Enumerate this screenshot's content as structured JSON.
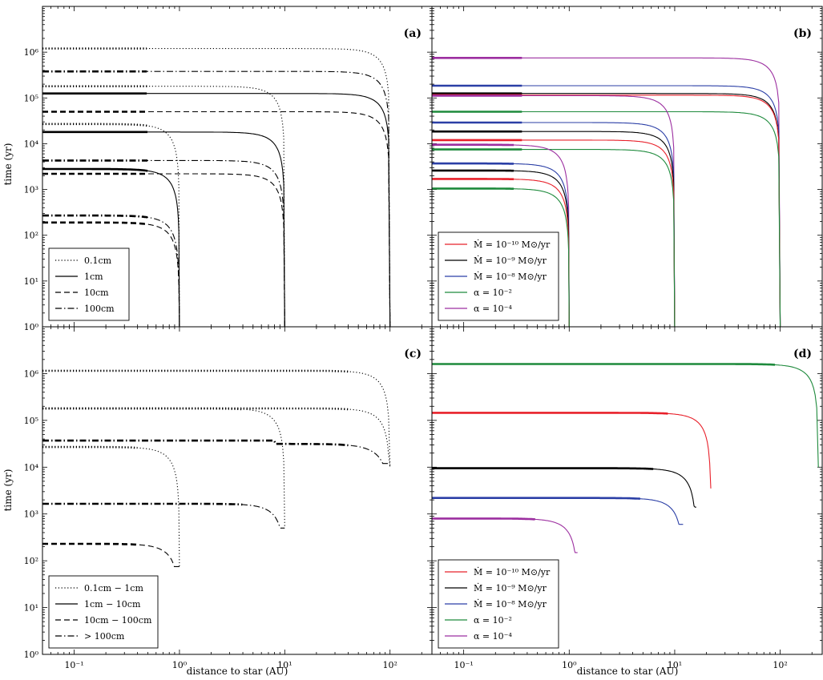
{
  "figure": {
    "xlabel": "distance to star (AU)",
    "ylabel": "time (yr)",
    "xlim": [
      0.05,
      250
    ],
    "ylim": [
      1,
      10000000
    ],
    "xscale": "log",
    "yscale": "log",
    "xticks": [
      "10⁻¹",
      "10⁰",
      "10¹",
      "10²"
    ],
    "yticks": [
      "10⁰",
      "10¹",
      "10²",
      "10³",
      "10⁴",
      "10⁵",
      "10⁶"
    ],
    "panel_labels": [
      "(a)",
      "(b)",
      "(c)",
      "(d)"
    ]
  },
  "colors": {
    "red": "#e8202a",
    "black": "#000000",
    "blue": "#2b3fa6",
    "green": "#1e8a3c",
    "magenta": "#9c2fa0"
  },
  "chart_data": [
    {
      "panel": "(a)",
      "type": "line",
      "legend_loc": "lower-left",
      "legend": [
        {
          "label": "0.1cm",
          "style": "dotted"
        },
        {
          "label": "1cm",
          "style": "solid"
        },
        {
          "label": "10cm",
          "style": "dashed"
        },
        {
          "label": "100cm",
          "style": "dashdot"
        }
      ],
      "series": [
        {
          "r0": 100,
          "t0": 1200000,
          "style": "dotted"
        },
        {
          "r0": 100,
          "t0": 125000,
          "style": "solid"
        },
        {
          "r0": 100,
          "t0": 50000,
          "style": "dashed"
        },
        {
          "r0": 100,
          "t0": 380000,
          "style": "dashdot"
        },
        {
          "r0": 10,
          "t0": 180000,
          "style": "dotted"
        },
        {
          "r0": 10,
          "t0": 18000,
          "style": "solid"
        },
        {
          "r0": 10,
          "t0": 2200,
          "style": "dashed"
        },
        {
          "r0": 10,
          "t0": 4300,
          "style": "dashdot"
        },
        {
          "r0": 1,
          "t0": 27000,
          "style": "dotted"
        },
        {
          "r0": 1,
          "t0": 2800,
          "style": "solid"
        },
        {
          "r0": 1,
          "t0": 190,
          "style": "dashed"
        },
        {
          "r0": 1,
          "t0": 270,
          "style": "dashdot"
        }
      ]
    },
    {
      "panel": "(b)",
      "type": "line",
      "legend_loc": "lower-left",
      "legend": [
        {
          "label": "Ṁ = 10⁻¹⁰ M⊙/yr",
          "color": "red"
        },
        {
          "label": "Ṁ = 10⁻⁹ M⊙/yr",
          "color": "black"
        },
        {
          "label": "Ṁ = 10⁻⁸ M⊙/yr",
          "color": "blue"
        },
        {
          "label": "α = 10⁻²",
          "color": "green"
        },
        {
          "label": "α = 10⁻⁴",
          "color": "magenta"
        }
      ],
      "series": [
        {
          "r0": 100,
          "t0": 750000,
          "color": "magenta"
        },
        {
          "r0": 100,
          "t0": 185000,
          "color": "blue"
        },
        {
          "r0": 100,
          "t0": 125000,
          "color": "black"
        },
        {
          "r0": 100,
          "t0": 115000,
          "color": "red"
        },
        {
          "r0": 100,
          "t0": 50000,
          "color": "green"
        },
        {
          "r0": 10,
          "t0": 112000,
          "color": "magenta"
        },
        {
          "r0": 10,
          "t0": 29000,
          "color": "blue"
        },
        {
          "r0": 10,
          "t0": 18500,
          "color": "black"
        },
        {
          "r0": 10,
          "t0": 12000,
          "color": "red"
        },
        {
          "r0": 10,
          "t0": 7500,
          "color": "green"
        },
        {
          "r0": 1,
          "t0": 9500,
          "color": "magenta"
        },
        {
          "r0": 1,
          "t0": 3700,
          "color": "blue"
        },
        {
          "r0": 1,
          "t0": 2600,
          "color": "black"
        },
        {
          "r0": 1,
          "t0": 1700,
          "color": "red"
        },
        {
          "r0": 1,
          "t0": 1050,
          "color": "green"
        }
      ]
    },
    {
      "panel": "(c)",
      "type": "line",
      "legend_loc": "lower-left",
      "legend": [
        {
          "label": "0.1cm − 1cm",
          "style": "dotted"
        },
        {
          "label": "1cm − 10cm",
          "style": "solid"
        },
        {
          "label": "10cm − 100cm",
          "style": "dashed"
        },
        {
          "label": "> 100cm",
          "style": "dashdot"
        }
      ],
      "series": [
        {
          "r0": 100,
          "t0": 1150000,
          "style": "dotted",
          "t_end": 10000
        },
        {
          "r0": 100,
          "t0": 180000,
          "style": "dotted",
          "t_end": 10000
        },
        {
          "r0": 100,
          "t0": 37000,
          "style": "dashdot",
          "t_end": 12000,
          "knee": 8
        },
        {
          "r0": 10,
          "t0": 180000,
          "style": "dotted",
          "t_end": 500
        },
        {
          "r0": 10,
          "t0": 1650,
          "style": "dashdot",
          "t_end": 500
        },
        {
          "r0": 1,
          "t0": 27000,
          "style": "dotted",
          "t_end": 75
        },
        {
          "r0": 1,
          "t0": 230,
          "style": "dashed",
          "t_end": 75
        }
      ]
    },
    {
      "panel": "(d)",
      "type": "line",
      "legend_loc": "lower-left",
      "legend": [
        {
          "label": "Ṁ = 10⁻¹⁰ M⊙/yr",
          "color": "red"
        },
        {
          "label": "Ṁ = 10⁻⁹ M⊙/yr",
          "color": "black"
        },
        {
          "label": "Ṁ = 10⁻⁸ M⊙/yr",
          "color": "blue"
        },
        {
          "label": "α = 10⁻²",
          "color": "green"
        },
        {
          "label": "α = 10⁻⁴",
          "color": "magenta"
        }
      ],
      "series": [
        {
          "r0": 230,
          "t0": 1600000,
          "t_end": 10000,
          "color": "green"
        },
        {
          "r0": 22,
          "t0": 145000,
          "t_end": 3500,
          "color": "red"
        },
        {
          "r0": 16,
          "t0": 9500,
          "t_end": 1400,
          "color": "black"
        },
        {
          "r0": 12,
          "t0": 2200,
          "t_end": 600,
          "color": "blue"
        },
        {
          "r0": 1.2,
          "t0": 800,
          "t_end": 150,
          "color": "magenta"
        }
      ]
    }
  ]
}
